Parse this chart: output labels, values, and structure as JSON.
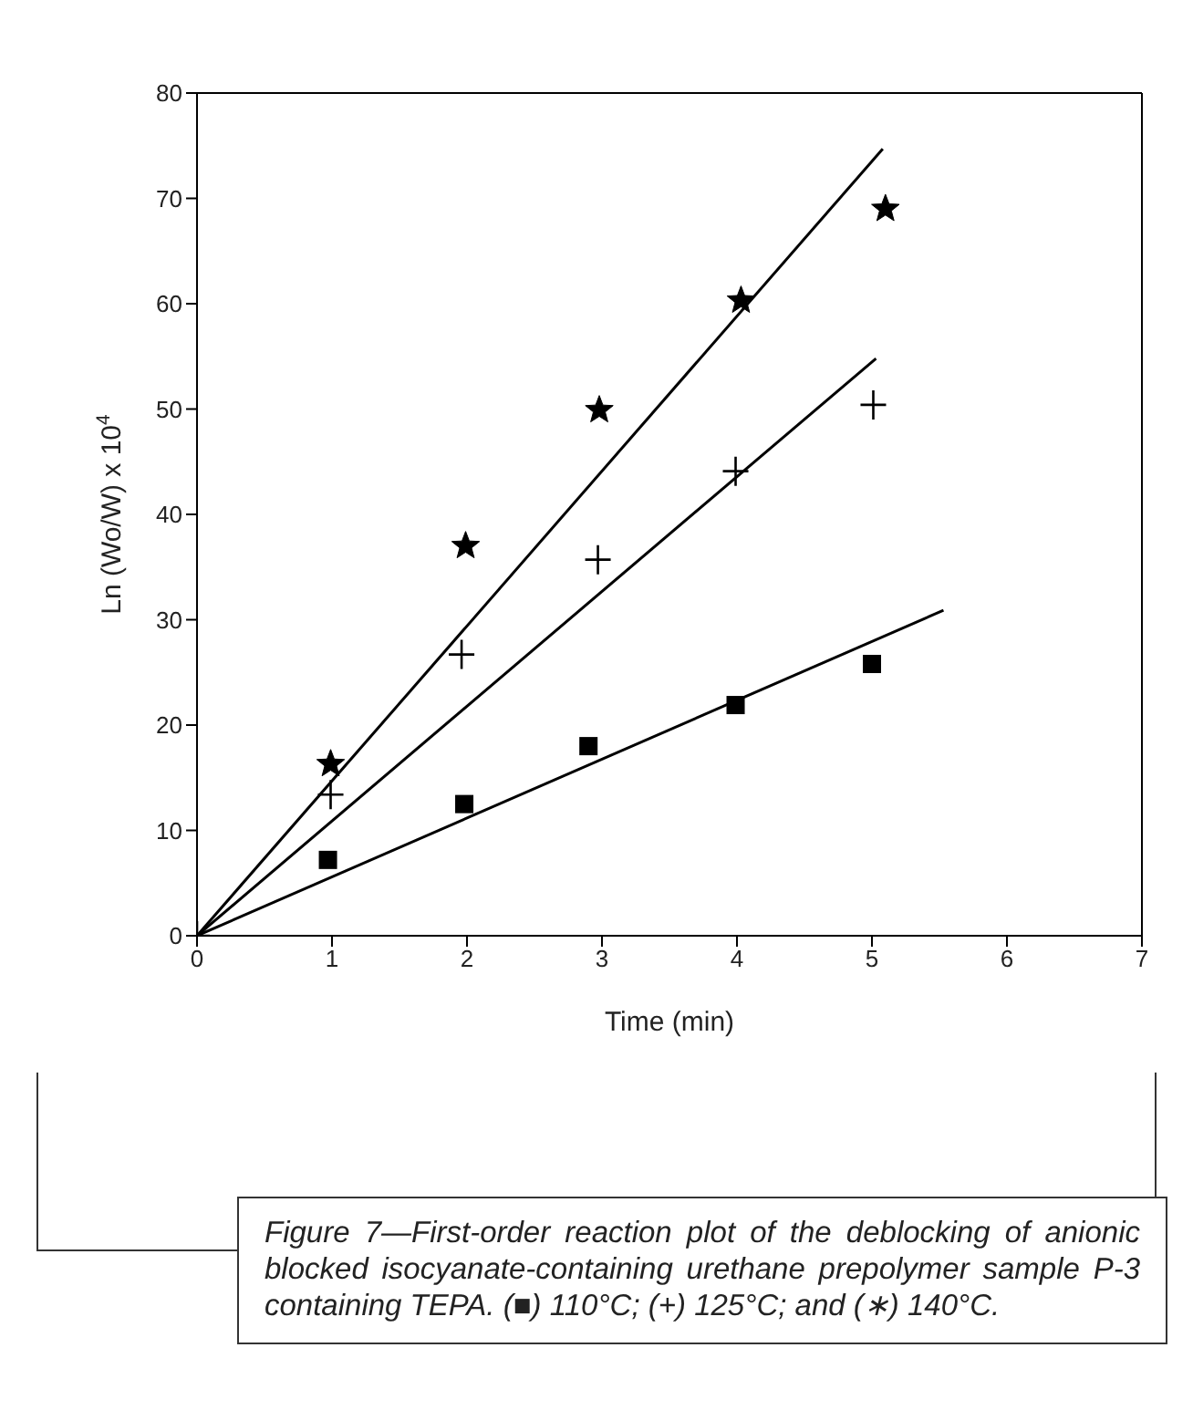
{
  "chart_data": {
    "type": "scatter",
    "xlabel": "Time (min)",
    "ylabel": "Ln (Wo/W) x 10$^{4}$",
    "xlim": [
      0,
      7
    ],
    "xticks": [
      0,
      1,
      2,
      3,
      4,
      5,
      6,
      7
    ],
    "ylim": [
      0,
      80
    ],
    "yticks": [
      0,
      10,
      20,
      30,
      40,
      50,
      60,
      70,
      80
    ],
    "grid": false,
    "series": [
      {
        "color": "#000000",
        "marker": "square",
        "x": [
          0.97,
          1.98,
          2.9,
          3.99,
          5.0
        ],
        "values": [
          7.2,
          12.5,
          18.0,
          21.9,
          25.8
        ]
      },
      {
        "color": "#000000",
        "marker": "cross",
        "x": [
          0,
          0.99,
          1.96,
          2.97,
          3.99,
          5.01
        ],
        "values": [
          0,
          13.4,
          26.7,
          35.7,
          44.1,
          50.4
        ]
      },
      {
        "color": "#000000",
        "marker": "star",
        "x": [
          0.99,
          1.99,
          2.98,
          4.03,
          5.1
        ],
        "values": [
          16.3,
          37.0,
          49.9,
          60.3,
          69.0
        ]
      },
      {
        "type": "line",
        "color": "#000000",
        "marker": "none",
        "x": [
          0,
          5.53
        ],
        "values": [
          0,
          30.9
        ]
      },
      {
        "type": "line",
        "color": "#000000",
        "marker": "none",
        "x": [
          0,
          5.03
        ],
        "values": [
          0,
          54.8
        ]
      },
      {
        "type": "line",
        "color": "#000000",
        "marker": "none",
        "x": [
          0,
          5.08
        ],
        "values": [
          0,
          74.7
        ]
      }
    ],
    "annotations": [
      "Figure 7—First-order reaction plot of the deblocking of anionic blocked isocyanate-containing urethane prepolymer sample P-3 containing TEPA. (■) 110°C; (+) 125°C; and (∗) 140°C."
    ]
  }
}
